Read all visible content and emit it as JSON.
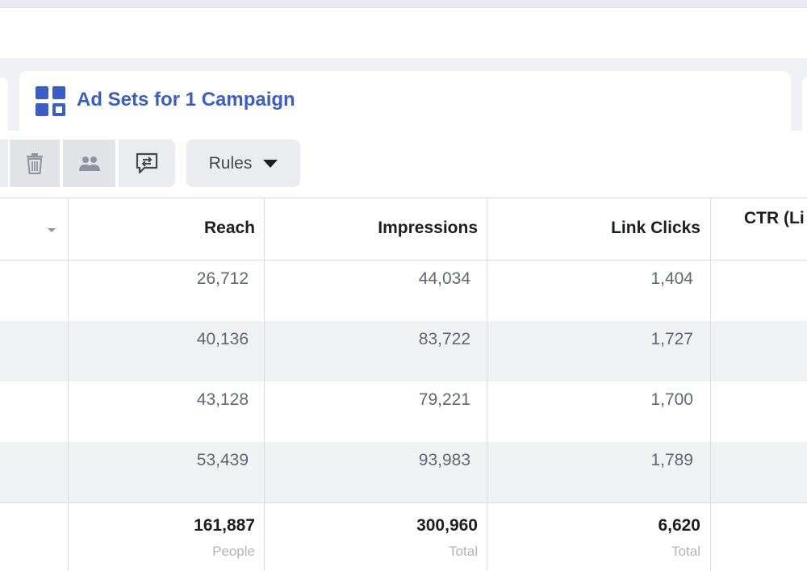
{
  "tabs": {
    "active_label": "Ad Sets for 1 Campaign",
    "active_icon": "grid-icon",
    "accent_color": "#3b5dc9"
  },
  "toolbar": {
    "buttons": [
      {
        "icon": "trash-icon"
      },
      {
        "icon": "people-icon"
      },
      {
        "icon": "comment-compare-icon"
      }
    ],
    "rules_label": "Rules"
  },
  "table": {
    "columns": [
      "Reach",
      "Impressions",
      "Link Clicks",
      "CTR (Li"
    ],
    "rows": [
      {
        "reach": "26,712",
        "impressions": "44,034",
        "link_clicks": "1,404"
      },
      {
        "reach": "40,136",
        "impressions": "83,722",
        "link_clicks": "1,727"
      },
      {
        "reach": "43,128",
        "impressions": "79,221",
        "link_clicks": "1,700"
      },
      {
        "reach": "53,439",
        "impressions": "93,983",
        "link_clicks": "1,789"
      }
    ],
    "totals": {
      "reach": "161,887",
      "reach_unit": "People",
      "impressions": "300,960",
      "impressions_unit": "Total",
      "link_clicks": "6,620",
      "link_clicks_unit": "Total"
    }
  }
}
